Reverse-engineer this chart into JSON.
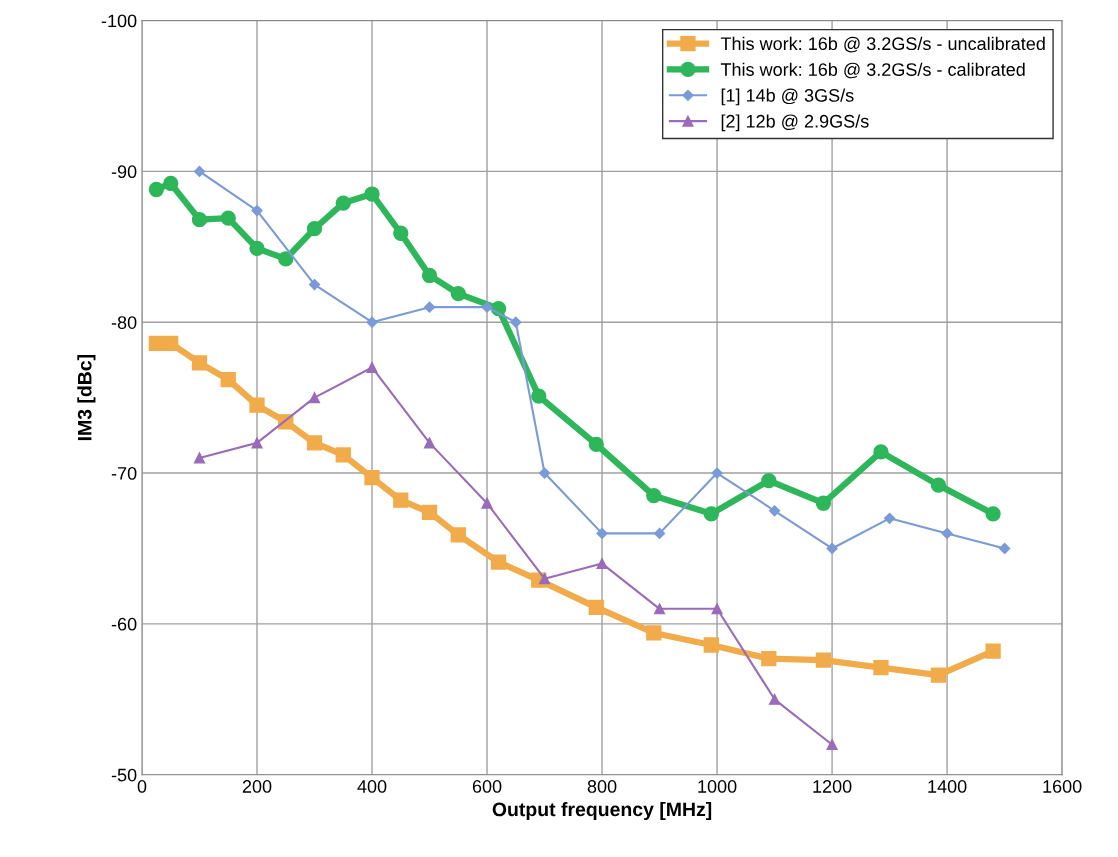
{
  "chart_data": {
    "type": "line",
    "xlabel": "Output frequency [MHz]",
    "ylabel": "IM3 [dBc]",
    "xlim": [
      0,
      1600
    ],
    "xticks": [
      0,
      200,
      400,
      600,
      800,
      1000,
      1200,
      1400,
      1600
    ],
    "ylim": [
      -50,
      -100
    ],
    "yticks": [
      -100,
      -90,
      -80,
      -70,
      -60,
      -50
    ],
    "grid": true,
    "legend": "top right",
    "series": [
      {
        "name": "This work: 16b @ 3.2GS/s - uncalibrated",
        "color": "#f2ab4a",
        "marker": "square",
        "x": [
          25,
          50,
          100,
          150,
          200,
          250,
          300,
          350,
          400,
          450,
          500,
          550,
          620,
          690,
          790,
          890,
          990,
          1090,
          1185,
          1285,
          1385,
          1480
        ],
        "values": [
          -78.6,
          -78.6,
          -77.3,
          -76.2,
          -74.5,
          -73.4,
          -72.0,
          -71.2,
          -69.7,
          -68.2,
          -67.4,
          -65.9,
          -64.1,
          -62.9,
          -61.1,
          -59.4,
          -58.6,
          -57.7,
          -57.6,
          -57.1,
          -56.6,
          -58.2
        ]
      },
      {
        "name": "This work: 16b @ 3.2GS/s - calibrated",
        "color": "#2db65a",
        "marker": "circle",
        "x": [
          25,
          50,
          100,
          150,
          200,
          250,
          300,
          350,
          400,
          450,
          500,
          550,
          620,
          690,
          790,
          890,
          990,
          1090,
          1185,
          1285,
          1385,
          1480
        ],
        "values": [
          -88.8,
          -89.2,
          -86.8,
          -86.9,
          -84.9,
          -84.2,
          -86.2,
          -87.9,
          -88.5,
          -85.9,
          -83.1,
          -81.9,
          -80.9,
          -75.1,
          -71.9,
          -68.5,
          -67.3,
          -69.5,
          -68.0,
          -71.4,
          -69.2,
          -67.3
        ]
      },
      {
        "name": "[1] 14b @ 3GS/s",
        "color": "#7a9ad8",
        "marker": "diamond",
        "x": [
          100,
          200,
          300,
          400,
          500,
          600,
          650,
          700,
          800,
          900,
          1000,
          1100,
          1200,
          1300,
          1400,
          1500
        ],
        "values": [
          -90.0,
          -87.4,
          -82.5,
          -80.0,
          -81.0,
          -81.0,
          -80.0,
          -70.0,
          -66.0,
          -66.0,
          -70.0,
          -67.5,
          -65.0,
          -67.0,
          -66.0,
          -65.0
        ]
      },
      {
        "name": "[2] 12b @ 2.9GS/s",
        "color": "#9a6bb8",
        "marker": "triangle",
        "x": [
          100,
          200,
          300,
          400,
          500,
          600,
          700,
          800,
          900,
          1000,
          1100,
          1200
        ],
        "values": [
          -71,
          -72,
          -75,
          -77,
          -72,
          -68,
          -63,
          -64,
          -61,
          -61,
          -55,
          -52
        ]
      }
    ]
  }
}
